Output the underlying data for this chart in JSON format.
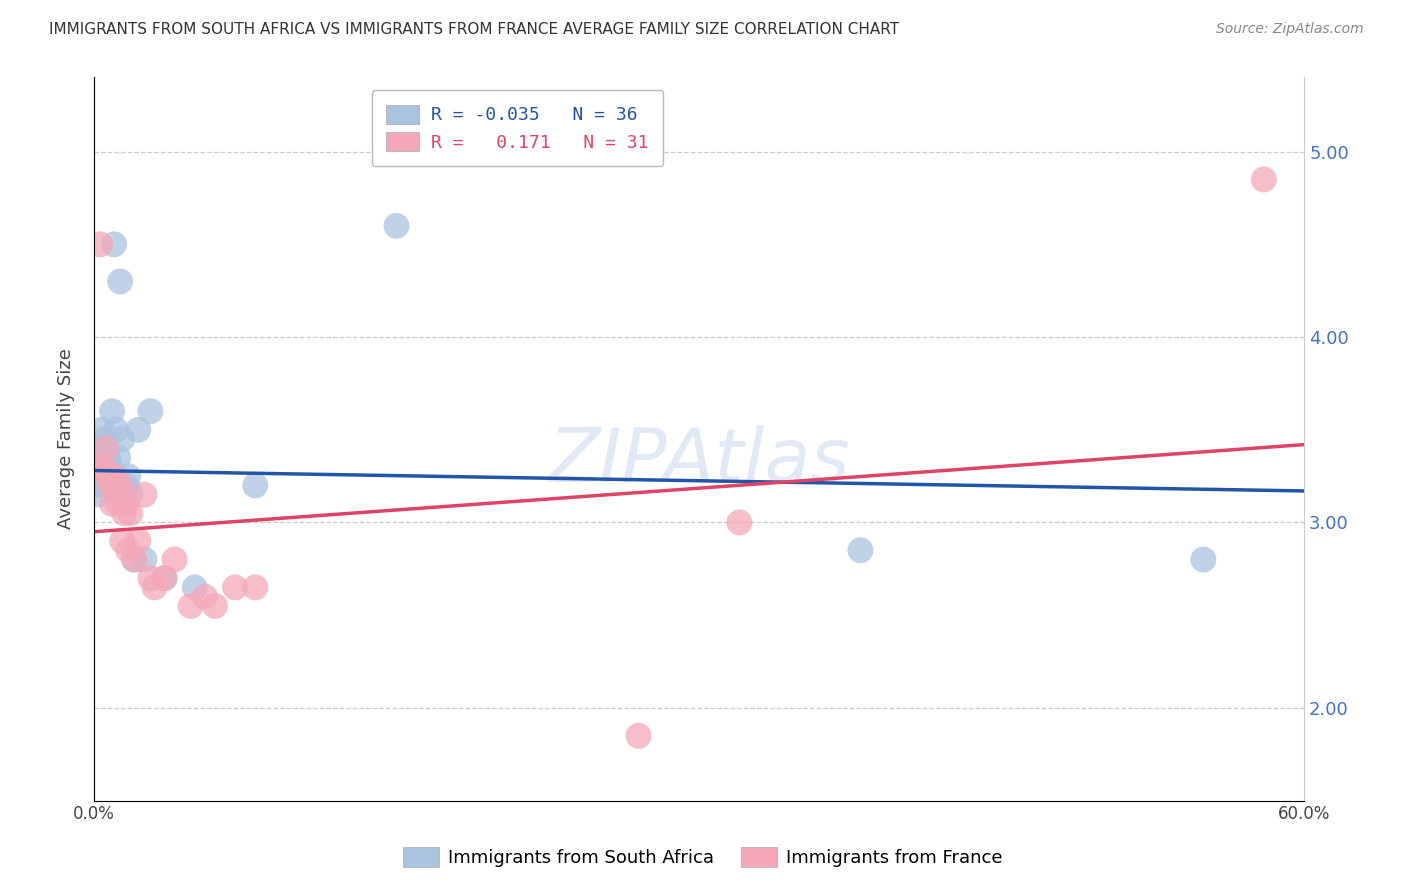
{
  "title": "IMMIGRANTS FROM SOUTH AFRICA VS IMMIGRANTS FROM FRANCE AVERAGE FAMILY SIZE CORRELATION CHART",
  "source": "Source: ZipAtlas.com",
  "ylabel": "Average Family Size",
  "xlim": [
    0.0,
    0.6
  ],
  "ylim": [
    1.5,
    5.4
  ],
  "yticks": [
    2.0,
    3.0,
    4.0,
    5.0
  ],
  "xticks": [
    0.0,
    0.1,
    0.2,
    0.3,
    0.4,
    0.5,
    0.6
  ],
  "xticklabels": [
    "0.0%",
    "",
    "",
    "",
    "",
    "",
    "60.0%"
  ],
  "background_color": "#ffffff",
  "grid_color": "#cccccc",
  "south_africa_color": "#aac4e0",
  "france_color": "#f4a8b8",
  "south_africa_line_color": "#2255aa",
  "france_line_color": "#dd4466",
  "south_africa_R": "-0.035",
  "south_africa_N": "36",
  "france_R": "0.171",
  "france_N": "31",
  "watermark": "ZIPAtlas",
  "south_africa_x": [
    0.001,
    0.002,
    0.002,
    0.003,
    0.003,
    0.004,
    0.004,
    0.005,
    0.005,
    0.005,
    0.006,
    0.006,
    0.007,
    0.007,
    0.008,
    0.008,
    0.009,
    0.01,
    0.01,
    0.011,
    0.012,
    0.013,
    0.014,
    0.016,
    0.017,
    0.018,
    0.02,
    0.022,
    0.025,
    0.028,
    0.035,
    0.05,
    0.08,
    0.15,
    0.38,
    0.55
  ],
  "south_africa_y": [
    3.2,
    3.3,
    3.4,
    3.15,
    3.35,
    3.25,
    3.5,
    3.2,
    3.3,
    3.45,
    3.2,
    3.4,
    3.25,
    3.35,
    3.2,
    3.3,
    3.6,
    3.2,
    4.5,
    3.5,
    3.35,
    4.3,
    3.45,
    3.2,
    3.25,
    3.15,
    2.8,
    3.5,
    2.8,
    3.6,
    2.7,
    2.65,
    3.2,
    4.6,
    2.85,
    2.8
  ],
  "france_x": [
    0.002,
    0.003,
    0.005,
    0.006,
    0.007,
    0.008,
    0.009,
    0.01,
    0.011,
    0.012,
    0.013,
    0.014,
    0.015,
    0.016,
    0.017,
    0.018,
    0.02,
    0.022,
    0.025,
    0.028,
    0.03,
    0.035,
    0.04,
    0.048,
    0.055,
    0.06,
    0.07,
    0.08,
    0.27,
    0.32,
    0.58
  ],
  "france_y": [
    3.3,
    4.5,
    3.3,
    3.4,
    3.25,
    3.2,
    3.1,
    3.25,
    3.2,
    3.1,
    3.2,
    2.9,
    3.05,
    3.1,
    2.85,
    3.05,
    2.8,
    2.9,
    3.15,
    2.7,
    2.65,
    2.7,
    2.8,
    2.55,
    2.6,
    2.55,
    2.65,
    2.65,
    1.85,
    3.0,
    4.85
  ],
  "sa_line_x0": 0.0,
  "sa_line_y0": 3.28,
  "sa_line_x1": 0.6,
  "sa_line_y1": 3.17,
  "fr_line_x0": 0.0,
  "fr_line_y0": 2.95,
  "fr_line_x1": 0.6,
  "fr_line_y1": 3.42
}
